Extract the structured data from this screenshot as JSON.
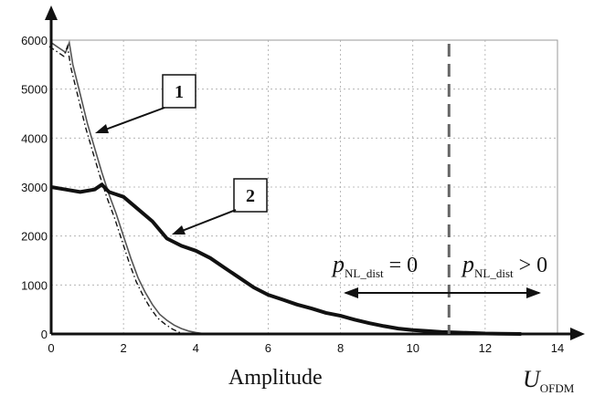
{
  "chart_data": {
    "type": "line",
    "xlabel": "Amplitude",
    "xlabel_symbol": "U",
    "xlabel_symbol_sub": "OFDM",
    "xlim": [
      0,
      14
    ],
    "ylim": [
      0,
      6000
    ],
    "xticks": [
      0,
      2,
      4,
      6,
      8,
      10,
      12,
      14
    ],
    "yticks": [
      0,
      1000,
      2000,
      3000,
      4000,
      5000,
      6000
    ],
    "grid": true,
    "threshold_x": 11,
    "series": [
      {
        "label": "1",
        "style": "thin solid + dash-dot",
        "points": [
          [
            0,
            5950
          ],
          [
            0.2,
            5850
          ],
          [
            0.4,
            5750
          ],
          [
            0.5,
            5950
          ],
          [
            0.6,
            5500
          ],
          [
            0.8,
            4900
          ],
          [
            1.0,
            4300
          ],
          [
            1.2,
            3800
          ],
          [
            1.4,
            3300
          ],
          [
            1.6,
            2850
          ],
          [
            1.8,
            2450
          ],
          [
            2.0,
            2000
          ],
          [
            2.2,
            1550
          ],
          [
            2.4,
            1150
          ],
          [
            2.6,
            850
          ],
          [
            2.8,
            600
          ],
          [
            3.0,
            400
          ],
          [
            3.2,
            280
          ],
          [
            3.4,
            180
          ],
          [
            3.6,
            110
          ],
          [
            3.8,
            60
          ],
          [
            4.0,
            30
          ],
          [
            4.2,
            10
          ],
          [
            4.4,
            0
          ]
        ]
      },
      {
        "label": "2",
        "style": "thick solid",
        "points": [
          [
            0,
            3000
          ],
          [
            0.4,
            2950
          ],
          [
            0.8,
            2900
          ],
          [
            1.2,
            2950
          ],
          [
            1.4,
            3050
          ],
          [
            1.6,
            2900
          ],
          [
            2.0,
            2800
          ],
          [
            2.4,
            2550
          ],
          [
            2.8,
            2300
          ],
          [
            3.2,
            1950
          ],
          [
            3.6,
            1800
          ],
          [
            4.0,
            1700
          ],
          [
            4.4,
            1550
          ],
          [
            4.8,
            1350
          ],
          [
            5.2,
            1150
          ],
          [
            5.6,
            950
          ],
          [
            6.0,
            800
          ],
          [
            6.4,
            700
          ],
          [
            6.8,
            600
          ],
          [
            7.2,
            520
          ],
          [
            7.6,
            430
          ],
          [
            8.0,
            370
          ],
          [
            8.4,
            290
          ],
          [
            8.8,
            220
          ],
          [
            9.2,
            160
          ],
          [
            9.6,
            110
          ],
          [
            10.0,
            80
          ],
          [
            10.4,
            60
          ],
          [
            10.8,
            40
          ],
          [
            11.2,
            30
          ],
          [
            11.6,
            20
          ],
          [
            12.0,
            10
          ],
          [
            12.4,
            5
          ],
          [
            13.0,
            0
          ]
        ]
      }
    ],
    "annotations": {
      "callout_1": "1",
      "callout_2": "2",
      "left_region": {
        "symbol": "p",
        "sub": "NL_dist",
        "relation": "= 0"
      },
      "right_region": {
        "symbol": "p",
        "sub": "NL_dist",
        "relation": "> 0"
      }
    }
  }
}
